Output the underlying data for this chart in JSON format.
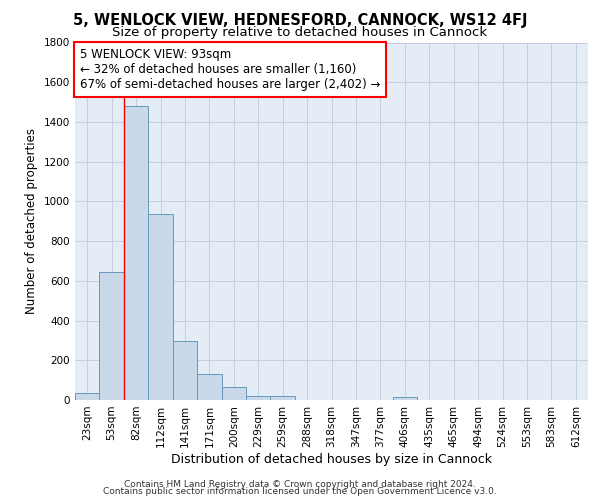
{
  "title": "5, WENLOCK VIEW, HEDNESFORD, CANNOCK, WS12 4FJ",
  "subtitle": "Size of property relative to detached houses in Cannock",
  "xlabel": "Distribution of detached houses by size in Cannock",
  "ylabel": "Number of detached properties",
  "bin_labels": [
    "23sqm",
    "53sqm",
    "82sqm",
    "112sqm",
    "141sqm",
    "171sqm",
    "200sqm",
    "229sqm",
    "259sqm",
    "288sqm",
    "318sqm",
    "347sqm",
    "377sqm",
    "406sqm",
    "435sqm",
    "465sqm",
    "494sqm",
    "524sqm",
    "553sqm",
    "583sqm",
    "612sqm"
  ],
  "bar_heights": [
    35,
    645,
    1480,
    935,
    295,
    130,
    65,
    20,
    20,
    0,
    0,
    0,
    0,
    15,
    0,
    0,
    0,
    0,
    0,
    0,
    0
  ],
  "bar_color": "#c9d9ea",
  "bar_edge_color": "#6699bb",
  "grid_color": "#c5cfe0",
  "background_color": "#e4ecf5",
  "red_line_x": 2.0,
  "annotation_text": "5 WENLOCK VIEW: 93sqm\n← 32% of detached houses are smaller (1,160)\n67% of semi-detached houses are larger (2,402) →",
  "annotation_box_color": "white",
  "annotation_box_edge": "red",
  "ylim": [
    0,
    1800
  ],
  "yticks": [
    0,
    200,
    400,
    600,
    800,
    1000,
    1200,
    1400,
    1600,
    1800
  ],
  "footer_line1": "Contains HM Land Registry data © Crown copyright and database right 2024.",
  "footer_line2": "Contains public sector information licensed under the Open Government Licence v3.0.",
  "title_fontsize": 10.5,
  "subtitle_fontsize": 9.5,
  "ylabel_fontsize": 8.5,
  "xlabel_fontsize": 9,
  "tick_fontsize": 7.5,
  "footer_fontsize": 6.5
}
